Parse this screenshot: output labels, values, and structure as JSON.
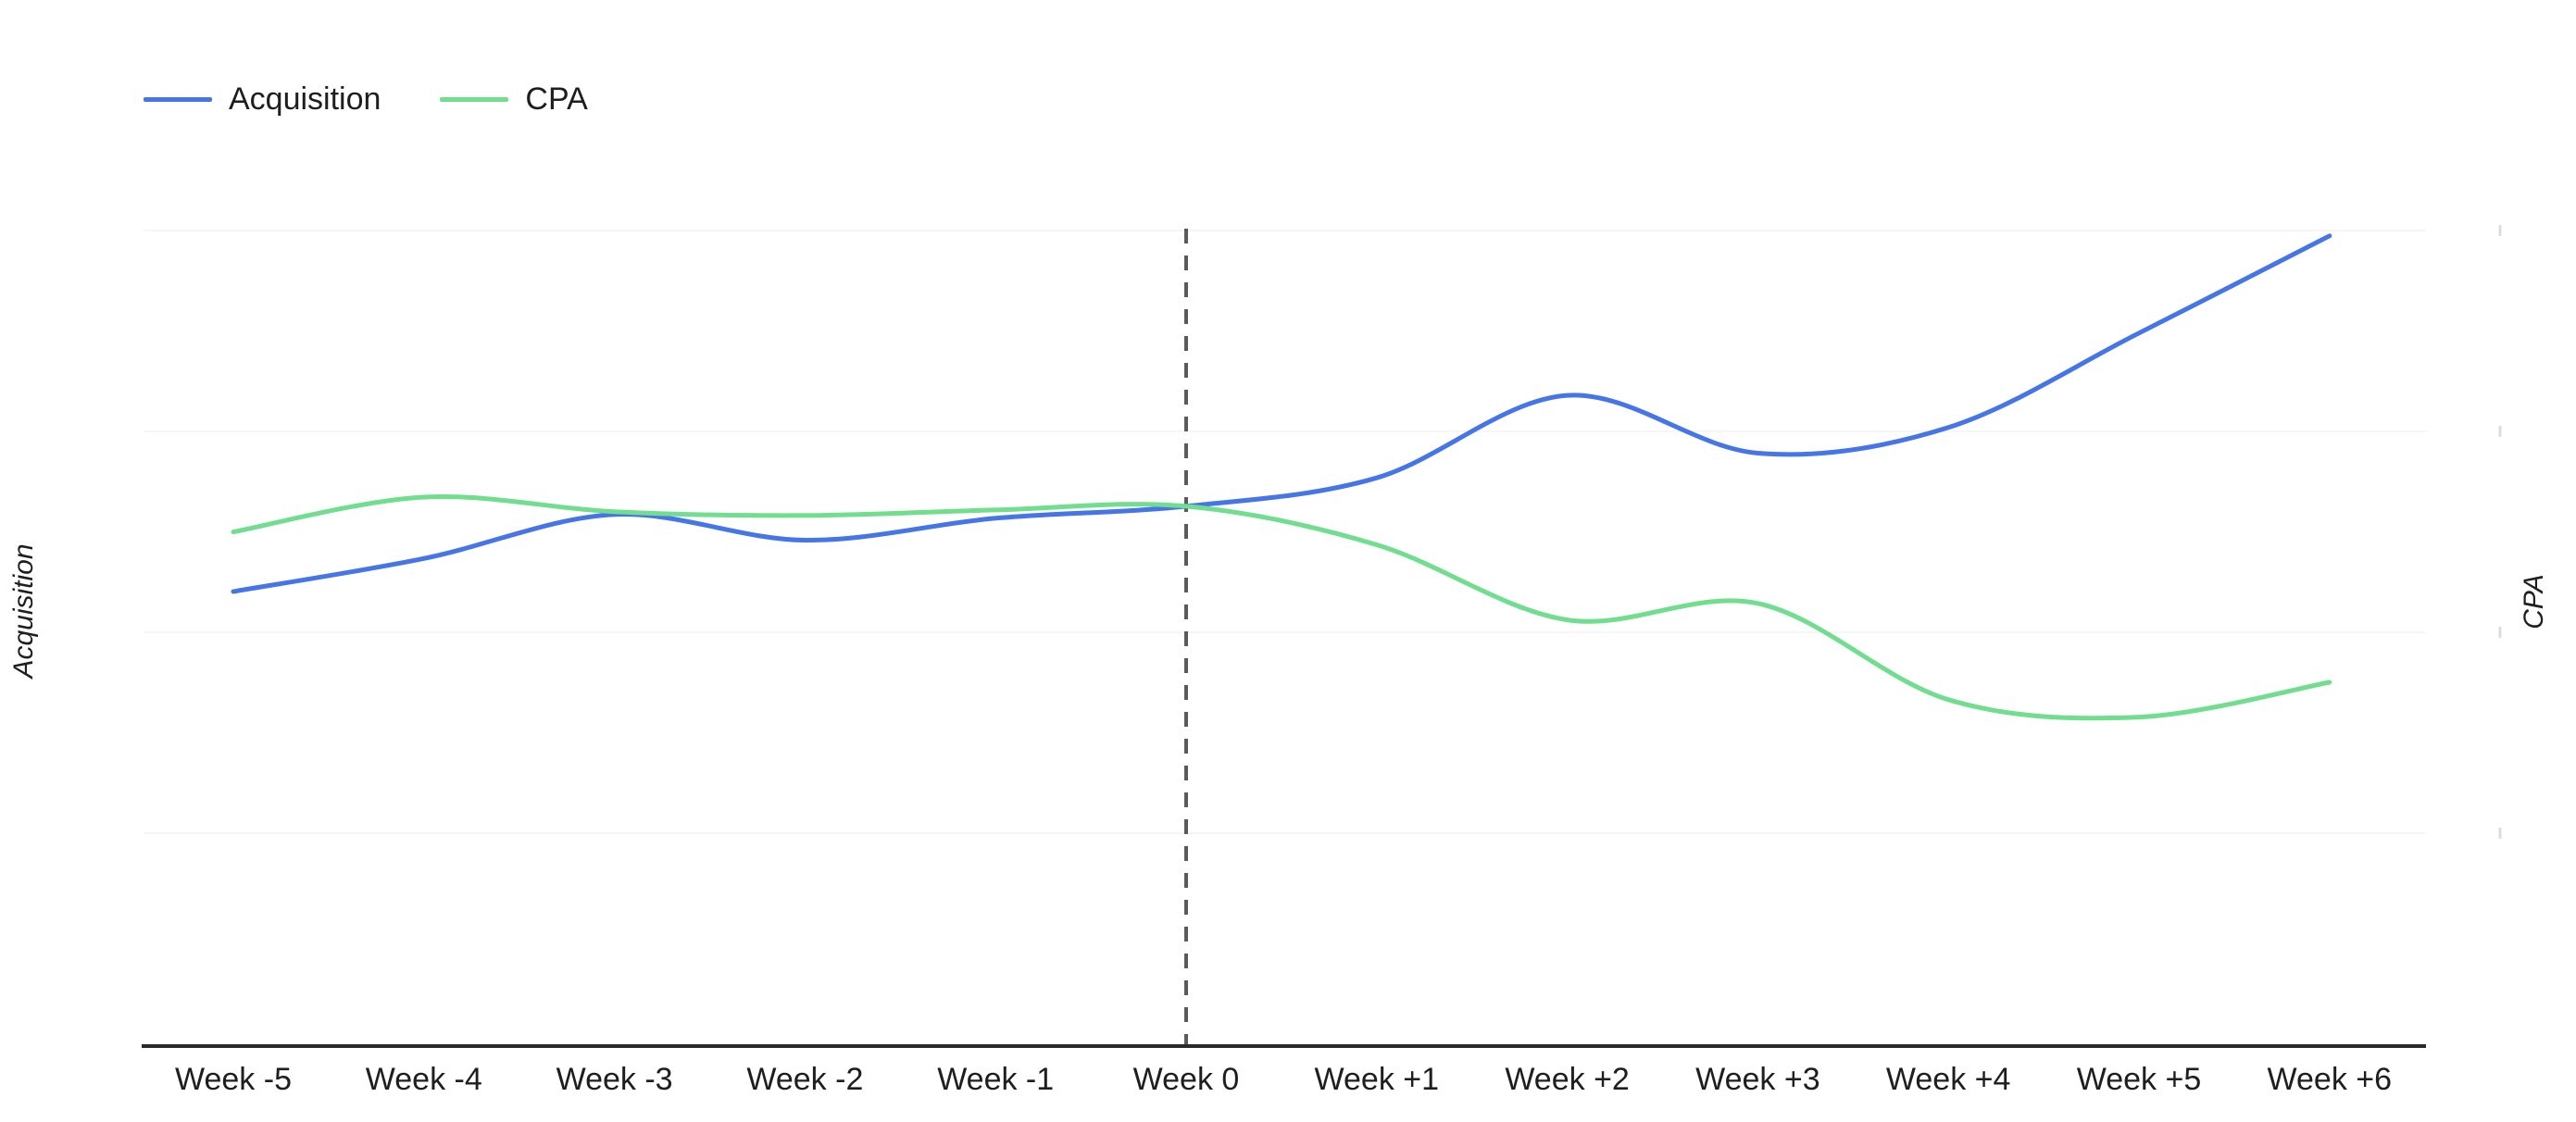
{
  "legend": {
    "items": [
      {
        "label": "Acquisition",
        "color": "#4575e6"
      },
      {
        "label": "CPA",
        "color": "#70dd8f"
      }
    ]
  },
  "axes": {
    "left_title": "Acquisition",
    "right_title": "CPA"
  },
  "chart_data": {
    "type": "line",
    "curve": "smoothed",
    "categories": [
      "Week -5",
      "Week -4",
      "Week -3",
      "Week -2",
      "Week -1",
      "Week 0",
      "Week +1",
      "Week +2",
      "Week +3",
      "Week +4",
      "Week +5",
      "Week +6"
    ],
    "series": [
      {
        "name": "Acquisition",
        "axis": "left",
        "color": "#4575e6",
        "values": [
          49.6,
          53.2,
          58.0,
          55.2,
          57.6,
          58.9,
          62.0,
          71.0,
          64.7,
          67.5,
          77.8,
          88.4
        ]
      },
      {
        "name": "CPA",
        "axis": "right",
        "color": "#70dd8f",
        "values": [
          56.1,
          59.9,
          58.3,
          57.9,
          58.5,
          58.9,
          54.7,
          46.5,
          48.3,
          37.8,
          35.9,
          39.7
        ]
      }
    ],
    "title": "",
    "xlabel": "",
    "ylabel_left": "Acquisition",
    "ylabel_right": "CPA",
    "ylim": [
      0,
      100
    ],
    "y_tick_labels_hidden": true,
    "grid": "very-faint-horizontal",
    "legend_position": "top-left",
    "annotations": [
      {
        "type": "vline",
        "at_category": "Week 0",
        "style": "dashed",
        "color": "#5a5a5a"
      }
    ],
    "colors": {
      "axis_line": "#2a2a2a",
      "marker_line": "#5a5a5a",
      "gridline": "#f6f6f6",
      "tick": "#dcdcdc",
      "background": "#ffffff",
      "text": "#1e1e1e"
    }
  }
}
